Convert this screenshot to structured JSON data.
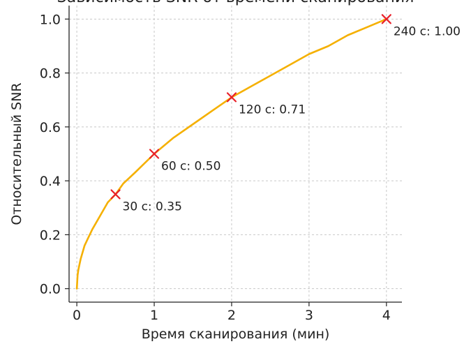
{
  "chart_data": {
    "type": "line",
    "title": "Зависимость SNR от времени сканирования",
    "xlabel": "Время сканирования (мин)",
    "ylabel": "Относительный SNR",
    "xlim": [
      -0.1,
      4.2
    ],
    "ylim": [
      -0.05,
      1.05
    ],
    "xticks": [
      0,
      1,
      2,
      3,
      4
    ],
    "yticks": [
      0.0,
      0.2,
      0.4,
      0.6,
      0.8,
      1.0
    ],
    "xtick_labels": [
      "0",
      "1",
      "2",
      "3",
      "4"
    ],
    "ytick_labels": [
      "0.0",
      "0.2",
      "0.4",
      "0.6",
      "0.8",
      "1.0"
    ],
    "grid": true,
    "series": [
      {
        "color": "#F5B000",
        "x": [
          0,
          0.01,
          0.02,
          0.05,
          0.1,
          0.15,
          0.2,
          0.3,
          0.4,
          0.5,
          0.6,
          0.75,
          1.0,
          1.25,
          1.5,
          1.75,
          2.0,
          2.25,
          2.5,
          2.75,
          3.0,
          3.25,
          3.5,
          3.75,
          4.0
        ],
        "y": [
          0.0,
          0.05,
          0.07,
          0.11,
          0.16,
          0.19,
          0.22,
          0.27,
          0.32,
          0.35,
          0.39,
          0.43,
          0.5,
          0.56,
          0.61,
          0.66,
          0.71,
          0.75,
          0.79,
          0.83,
          0.87,
          0.9,
          0.94,
          0.97,
          1.0
        ]
      }
    ],
    "markers": {
      "color": "#E8202A",
      "points": [
        {
          "x": 0.5,
          "y": 0.35,
          "label": "30 с: 0.35"
        },
        {
          "x": 1.0,
          "y": 0.5,
          "label": "60 с: 0.50"
        },
        {
          "x": 2.0,
          "y": 0.71,
          "label": "120 с: 0.71"
        },
        {
          "x": 4.0,
          "y": 1.0,
          "label": "240 с: 1.00"
        }
      ]
    }
  }
}
